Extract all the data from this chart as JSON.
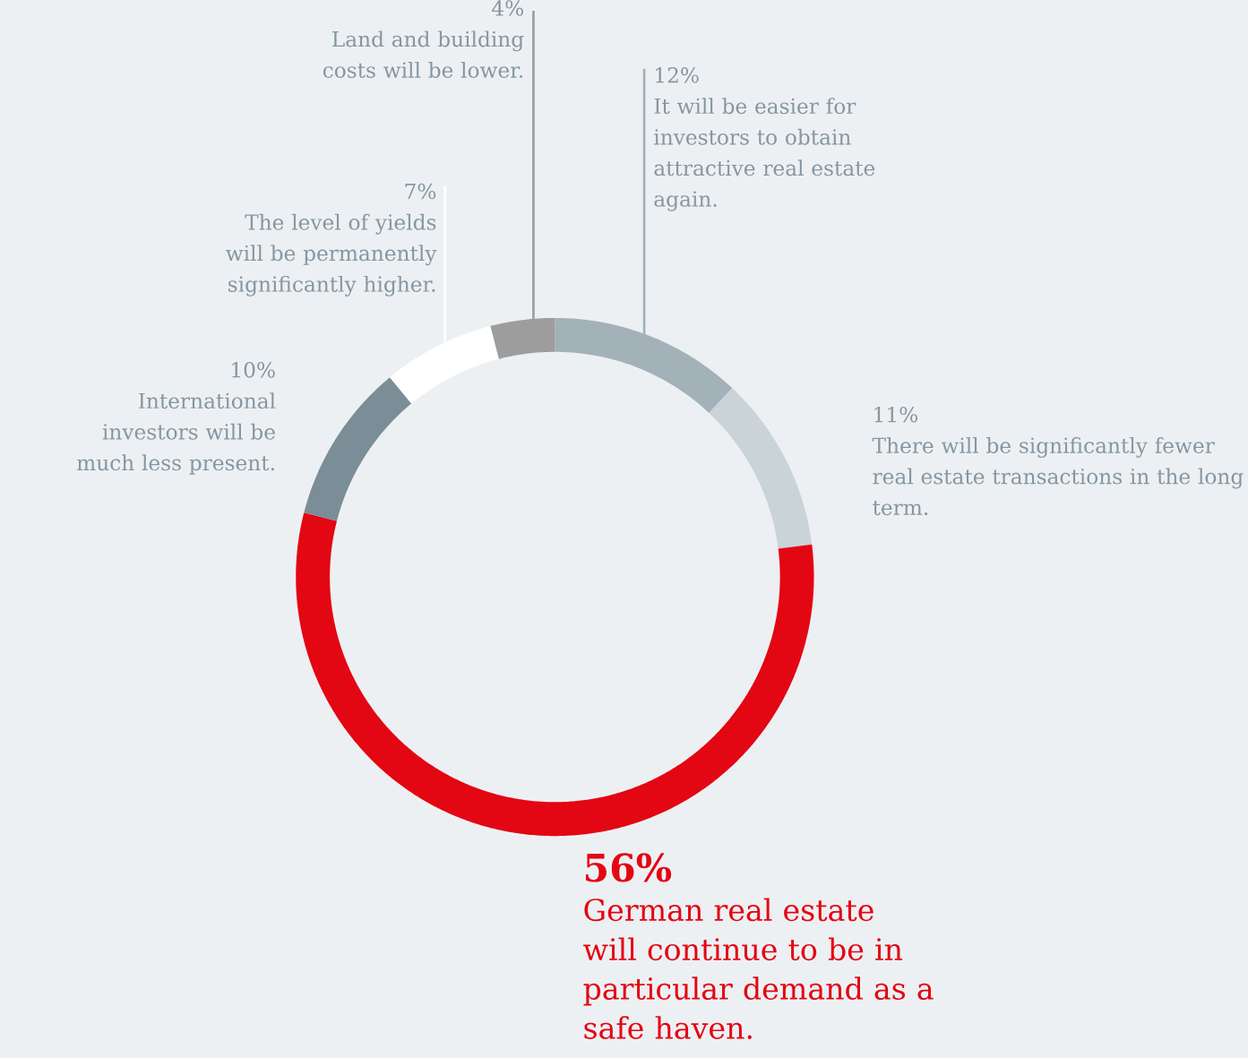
{
  "chart_data": {
    "type": "donut",
    "categories": [
      "It will be easier for investors to obtain attractive real estate again.",
      "There will be significantly fewer real estate transactions in the long term.",
      "German real estate will continue to be in particular demand as a safe haven.",
      "International investors will be much less present.",
      "The level of yields will be permanently significantly higher.",
      "Land and building costs will be lower."
    ],
    "values": [
      12,
      11,
      56,
      10,
      7,
      4
    ],
    "colors": [
      "#a3b1b8",
      "#c9d3d8",
      "#e30613",
      "#7b8d96",
      "#ffffff",
      "#9d9d9d"
    ],
    "value_labels": [
      "12%",
      "11%",
      "56%",
      "10%",
      "7%",
      "4%"
    ]
  }
}
